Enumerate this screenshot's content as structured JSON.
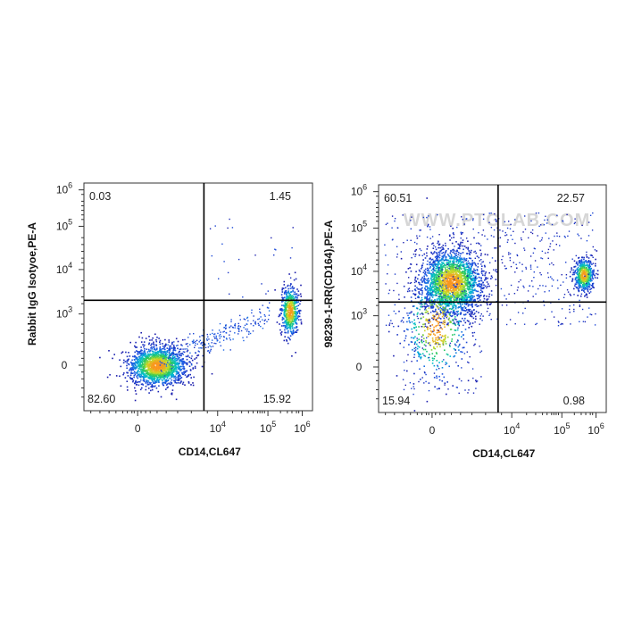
{
  "watermark": "WWW.PTGLAB.COM",
  "chart_data": [
    {
      "type": "scatter",
      "subtype": "flow-cytometry-density-dot-plot",
      "xlabel": "CD14,CL647",
      "ylabel": "Rabbit IgG Isotyoe,PE-A",
      "x_tick_labels": [
        {
          "base": "0",
          "exp": ""
        },
        {
          "base": "10",
          "exp": "4"
        },
        {
          "base": "10",
          "exp": "5"
        },
        {
          "base": "10",
          "exp": "6"
        }
      ],
      "y_tick_labels": [
        {
          "base": "0",
          "exp": ""
        },
        {
          "base": "10",
          "exp": "3"
        },
        {
          "base": "10",
          "exp": "4"
        },
        {
          "base": "10",
          "exp": "5"
        },
        {
          "base": "10",
          "exp": "6"
        }
      ],
      "quadrants": {
        "upper_left": "0.03",
        "upper_right": "1.45",
        "lower_left": "82.60",
        "lower_right": "15.92"
      },
      "gate": {
        "x": 6000,
        "y": 2500
      },
      "populations": [
        {
          "name": "",
          "x_center": 200,
          "y_center": 0,
          "relative_density": "high"
        },
        {
          "name": "",
          "x_center": 250000,
          "y_center": 1200,
          "relative_density": "medium"
        }
      ]
    },
    {
      "type": "scatter",
      "subtype": "flow-cytometry-density-dot-plot",
      "xlabel": "CD14,CL647",
      "ylabel": "98239-1-RR(CD164),PE-A",
      "x_tick_labels": [
        {
          "base": "0",
          "exp": ""
        },
        {
          "base": "10",
          "exp": "4"
        },
        {
          "base": "10",
          "exp": "5"
        },
        {
          "base": "10",
          "exp": "6"
        }
      ],
      "y_tick_labels": [
        {
          "base": "0",
          "exp": ""
        },
        {
          "base": "10",
          "exp": "3"
        },
        {
          "base": "10",
          "exp": "4"
        },
        {
          "base": "10",
          "exp": "5"
        },
        {
          "base": "10",
          "exp": "6"
        }
      ],
      "quadrants": {
        "upper_left": "60.51",
        "upper_right": "22.57",
        "lower_left": "15.94",
        "lower_right": "0.98"
      },
      "gate": {
        "x": 6000,
        "y": 2500
      },
      "populations": [
        {
          "name": "",
          "x_center": 200,
          "y_center": 6000,
          "relative_density": "high"
        },
        {
          "name": "",
          "x_center": 250000,
          "y_center": 9000,
          "relative_density": "medium"
        }
      ]
    }
  ]
}
